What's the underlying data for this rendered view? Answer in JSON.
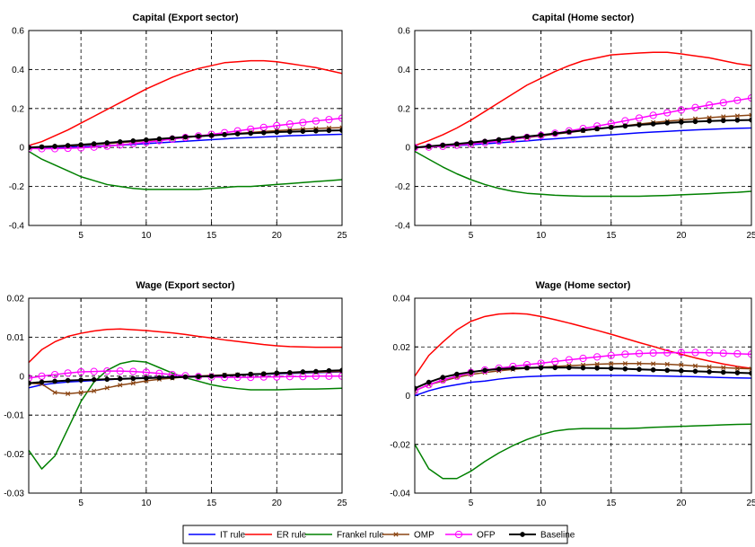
{
  "legend": {
    "position": "bottom",
    "entries": [
      {
        "label": "IT rule",
        "color": "#0000ff",
        "marker": "none"
      },
      {
        "label": "ER rule",
        "color": "#ff0000",
        "marker": "none"
      },
      {
        "label": "Frankel rule",
        "color": "#008000",
        "marker": "none"
      },
      {
        "label": "OMP",
        "color": "#8b4513",
        "marker": "x"
      },
      {
        "label": "OFP",
        "color": "#ff00ff",
        "marker": "circle"
      },
      {
        "label": "Baseline",
        "color": "#000000",
        "marker": "dot"
      }
    ]
  },
  "chart_data": [
    {
      "type": "line",
      "title": "Capital (Export sector)",
      "xlabel": "",
      "ylabel": "",
      "xlim": [
        1,
        25
      ],
      "ylim": [
        -0.4,
        0.6
      ],
      "grid": true,
      "xticks": [
        5,
        10,
        15,
        20,
        25
      ],
      "yticks": [
        -0.4,
        -0.2,
        0,
        0.2,
        0.4,
        0.6
      ],
      "ytick_labels": [
        "-0.4",
        "-0.2",
        "0",
        "0.2",
        "0.4",
        "0.6"
      ],
      "x": [
        1,
        2,
        3,
        4,
        5,
        6,
        7,
        8,
        9,
        10,
        11,
        12,
        13,
        14,
        15,
        16,
        17,
        18,
        19,
        20,
        21,
        22,
        23,
        24,
        25
      ],
      "series": [
        {
          "name": "IT rule",
          "values": [
            0,
            0,
            0,
            0.002,
            0.004,
            0.006,
            0.009,
            0.012,
            0.016,
            0.02,
            0.024,
            0.028,
            0.032,
            0.036,
            0.04,
            0.044,
            0.048,
            0.051,
            0.054,
            0.057,
            0.06,
            0.062,
            0.064,
            0.066,
            0.068
          ]
        },
        {
          "name": "ER rule",
          "values": [
            0.01,
            0.03,
            0.06,
            0.09,
            0.125,
            0.16,
            0.195,
            0.23,
            0.265,
            0.3,
            0.33,
            0.36,
            0.385,
            0.405,
            0.42,
            0.435,
            0.44,
            0.445,
            0.445,
            0.44,
            0.43,
            0.42,
            0.41,
            0.395,
            0.38
          ]
        },
        {
          "name": "Frankel rule",
          "values": [
            -0.02,
            -0.06,
            -0.09,
            -0.12,
            -0.15,
            -0.17,
            -0.19,
            -0.2,
            -0.21,
            -0.215,
            -0.215,
            -0.215,
            -0.215,
            -0.215,
            -0.21,
            -0.205,
            -0.2,
            -0.2,
            -0.195,
            -0.19,
            -0.185,
            -0.18,
            -0.175,
            -0.17,
            -0.165
          ]
        },
        {
          "name": "OMP",
          "values": [
            0,
            0.002,
            0.004,
            0.007,
            0.011,
            0.015,
            0.02,
            0.025,
            0.03,
            0.035,
            0.04,
            0.046,
            0.052,
            0.057,
            0.062,
            0.067,
            0.072,
            0.077,
            0.082,
            0.086,
            0.09,
            0.094,
            0.097,
            0.1,
            0.102
          ]
        },
        {
          "name": "OFP",
          "values": [
            -0.005,
            -0.006,
            -0.006,
            -0.004,
            -0.002,
            0.002,
            0.007,
            0.013,
            0.02,
            0.027,
            0.035,
            0.043,
            0.051,
            0.059,
            0.067,
            0.076,
            0.085,
            0.094,
            0.103,
            0.112,
            0.12,
            0.128,
            0.136,
            0.143,
            0.15
          ]
        },
        {
          "name": "Baseline",
          "values": [
            0,
            0.003,
            0.006,
            0.01,
            0.014,
            0.019,
            0.024,
            0.029,
            0.034,
            0.039,
            0.044,
            0.049,
            0.054,
            0.058,
            0.062,
            0.066,
            0.07,
            0.073,
            0.076,
            0.079,
            0.081,
            0.083,
            0.085,
            0.087,
            0.088
          ]
        }
      ]
    },
    {
      "type": "line",
      "title": "Capital (Home sector)",
      "xlabel": "",
      "ylabel": "",
      "xlim": [
        1,
        25
      ],
      "ylim": [
        -0.4,
        0.6
      ],
      "grid": true,
      "xticks": [
        5,
        10,
        15,
        20,
        25
      ],
      "yticks": [
        -0.4,
        -0.2,
        0,
        0.2,
        0.4,
        0.6
      ],
      "ytick_labels": [
        "-0.4",
        "-0.2",
        "0",
        "0.2",
        "0.4",
        "0.6"
      ],
      "x": [
        1,
        2,
        3,
        4,
        5,
        6,
        7,
        8,
        9,
        10,
        11,
        12,
        13,
        14,
        15,
        16,
        17,
        18,
        19,
        20,
        21,
        22,
        23,
        24,
        25
      ],
      "series": [
        {
          "name": "IT rule",
          "values": [
            0,
            0.003,
            0.006,
            0.01,
            0.014,
            0.019,
            0.024,
            0.029,
            0.034,
            0.04,
            0.045,
            0.05,
            0.055,
            0.06,
            0.065,
            0.07,
            0.075,
            0.079,
            0.083,
            0.087,
            0.09,
            0.093,
            0.096,
            0.098,
            0.1
          ]
        },
        {
          "name": "ER rule",
          "values": [
            0.01,
            0.035,
            0.065,
            0.1,
            0.14,
            0.185,
            0.23,
            0.275,
            0.32,
            0.355,
            0.39,
            0.42,
            0.445,
            0.46,
            0.475,
            0.48,
            0.485,
            0.488,
            0.488,
            0.48,
            0.47,
            0.46,
            0.445,
            0.43,
            0.42
          ]
        },
        {
          "name": "Frankel rule",
          "values": [
            -0.02,
            -0.06,
            -0.1,
            -0.135,
            -0.165,
            -0.19,
            -0.21,
            -0.225,
            -0.235,
            -0.24,
            -0.245,
            -0.248,
            -0.25,
            -0.25,
            -0.25,
            -0.25,
            -0.25,
            -0.248,
            -0.246,
            -0.243,
            -0.24,
            -0.237,
            -0.233,
            -0.23,
            -0.225
          ]
        },
        {
          "name": "OMP",
          "values": [
            0,
            0.004,
            0.009,
            0.015,
            0.021,
            0.028,
            0.035,
            0.043,
            0.051,
            0.059,
            0.068,
            0.077,
            0.086,
            0.095,
            0.104,
            0.112,
            0.12,
            0.128,
            0.135,
            0.141,
            0.147,
            0.153,
            0.158,
            0.162,
            0.166
          ]
        },
        {
          "name": "OFP",
          "values": [
            0,
            0.002,
            0.006,
            0.012,
            0.018,
            0.025,
            0.033,
            0.042,
            0.052,
            0.062,
            0.073,
            0.085,
            0.097,
            0.11,
            0.123,
            0.137,
            0.151,
            0.165,
            0.178,
            0.192,
            0.205,
            0.218,
            0.23,
            0.242,
            0.254
          ]
        },
        {
          "name": "Baseline",
          "values": [
            0,
            0.006,
            0.012,
            0.018,
            0.025,
            0.032,
            0.04,
            0.048,
            0.056,
            0.064,
            0.072,
            0.08,
            0.088,
            0.096,
            0.103,
            0.11,
            0.116,
            0.121,
            0.126,
            0.13,
            0.133,
            0.136,
            0.138,
            0.14,
            0.141
          ]
        }
      ]
    },
    {
      "type": "line",
      "title": "Wage (Export sector)",
      "xlabel": "",
      "ylabel": "",
      "xlim": [
        1,
        25
      ],
      "ylim": [
        -0.03,
        0.02
      ],
      "grid": true,
      "xticks": [
        5,
        10,
        15,
        20,
        25
      ],
      "yticks": [
        -0.03,
        -0.02,
        -0.01,
        0,
        0.01,
        0.02
      ],
      "ytick_labels": [
        "-0.03",
        "-0.02",
        "-0.01",
        "0",
        "0.01",
        "0.02"
      ],
      "x": [
        1,
        2,
        3,
        4,
        5,
        6,
        7,
        8,
        9,
        10,
        11,
        12,
        13,
        14,
        15,
        16,
        17,
        18,
        19,
        20,
        21,
        22,
        23,
        24,
        25
      ],
      "series": [
        {
          "name": "IT rule",
          "values": [
            -0.003,
            -0.0022,
            -0.0018,
            -0.0015,
            -0.0013,
            -0.0011,
            -0.0009,
            -0.0007,
            -0.0005,
            -0.0004,
            -0.0003,
            -0.0002,
            -0.0001,
            0,
            0.0001,
            0.0002,
            0.0003,
            0.0004,
            0.0005,
            0.0006,
            0.0007,
            0.0008,
            0.0009,
            0.001,
            0.0011
          ]
        },
        {
          "name": "ER rule",
          "values": [
            0.0035,
            0.0068,
            0.0088,
            0.0102,
            0.011,
            0.0116,
            0.012,
            0.0121,
            0.0119,
            0.0117,
            0.0114,
            0.0111,
            0.0107,
            0.0102,
            0.0098,
            0.0093,
            0.0089,
            0.0085,
            0.0081,
            0.0078,
            0.0076,
            0.0075,
            0.0074,
            0.0074,
            0.0074
          ]
        },
        {
          "name": "Frankel rule",
          "values": [
            -0.019,
            -0.0238,
            -0.0205,
            -0.0135,
            -0.0065,
            -0.0015,
            0.0015,
            0.0032,
            0.0039,
            0.0036,
            0.0022,
            0.0008,
            -0.0004,
            -0.0013,
            -0.0022,
            -0.0028,
            -0.0032,
            -0.0035,
            -0.0035,
            -0.0035,
            -0.0034,
            -0.0033,
            -0.0033,
            -0.0032,
            -0.0031
          ]
        },
        {
          "name": "OMP",
          "values": [
            -0.0018,
            -0.002,
            -0.0042,
            -0.0045,
            -0.0042,
            -0.0038,
            -0.003,
            -0.0023,
            -0.0018,
            -0.0012,
            -0.0008,
            -0.0005,
            -0.0002,
            0,
            0.0002,
            0.0003,
            0.0004,
            0.0005,
            0.0006,
            0.0007,
            0.0008,
            0.0009,
            0.001,
            0.0011,
            0.0012
          ]
        },
        {
          "name": "OFP",
          "values": [
            -0.0005,
            0,
            0.0004,
            0.0008,
            0.0011,
            0.0012,
            0.0013,
            0.0013,
            0.0012,
            0.001,
            0.0007,
            0.0004,
            0.0001,
            -0.0001,
            -0.0002,
            -0.0003,
            -0.0003,
            -0.0003,
            -0.0002,
            -0.0002,
            -0.0001,
            -0.0001,
            0,
            0,
            0
          ]
        },
        {
          "name": "Baseline",
          "values": [
            -0.0018,
            -0.0015,
            -0.0013,
            -0.0011,
            -0.001,
            -0.0009,
            -0.0008,
            -0.0007,
            -0.0006,
            -0.0005,
            -0.0004,
            -0.0003,
            -0.0002,
            -0.0001,
            0,
            0.0002,
            0.0003,
            0.0005,
            0.0006,
            0.0008,
            0.0009,
            0.0011,
            0.0012,
            0.0014,
            0.0015
          ]
        }
      ]
    },
    {
      "type": "line",
      "title": "Wage (Home sector)",
      "xlabel": "",
      "ylabel": "",
      "xlim": [
        1,
        25
      ],
      "ylim": [
        -0.04,
        0.04
      ],
      "grid": true,
      "xticks": [
        5,
        10,
        15,
        20,
        25
      ],
      "yticks": [
        -0.04,
        -0.02,
        0,
        0.02,
        0.04
      ],
      "ytick_labels": [
        "-0.04",
        "-0.02",
        "0",
        "0.02",
        "0.04"
      ],
      "x": [
        1,
        2,
        3,
        4,
        5,
        6,
        7,
        8,
        9,
        10,
        11,
        12,
        13,
        14,
        15,
        16,
        17,
        18,
        19,
        20,
        21,
        22,
        23,
        24,
        25
      ],
      "series": [
        {
          "name": "IT rule",
          "values": [
            0,
            0.002,
            0.0035,
            0.0045,
            0.0055,
            0.006,
            0.0068,
            0.0074,
            0.0078,
            0.008,
            0.0082,
            0.0083,
            0.0083,
            0.0083,
            0.0083,
            0.0083,
            0.0082,
            0.0081,
            0.008,
            0.0079,
            0.0078,
            0.0076,
            0.0074,
            0.0073,
            0.0072
          ]
        },
        {
          "name": "ER rule",
          "values": [
            0.008,
            0.0165,
            0.022,
            0.027,
            0.0305,
            0.0325,
            0.0335,
            0.0338,
            0.0335,
            0.0325,
            0.0312,
            0.0298,
            0.0283,
            0.0268,
            0.0252,
            0.0235,
            0.0218,
            0.0202,
            0.0185,
            0.017,
            0.0155,
            0.0142,
            0.013,
            0.012,
            0.0112
          ]
        },
        {
          "name": "Frankel rule",
          "values": [
            -0.02,
            -0.03,
            -0.034,
            -0.034,
            -0.031,
            -0.027,
            -0.0235,
            -0.0205,
            -0.018,
            -0.016,
            -0.0145,
            -0.0138,
            -0.0135,
            -0.0135,
            -0.0135,
            -0.0135,
            -0.0133,
            -0.013,
            -0.0128,
            -0.0126,
            -0.0124,
            -0.0122,
            -0.012,
            -0.0118,
            -0.0117
          ]
        },
        {
          "name": "OMP",
          "values": [
            0.002,
            0.0045,
            0.006,
            0.0075,
            0.0087,
            0.0095,
            0.0102,
            0.0108,
            0.0113,
            0.0117,
            0.012,
            0.0123,
            0.0126,
            0.0129,
            0.0131,
            0.0132,
            0.0132,
            0.0131,
            0.0129,
            0.0126,
            0.0122,
            0.0118,
            0.0115,
            0.0112,
            0.011
          ]
        },
        {
          "name": "OFP",
          "values": [
            0.002,
            0.0045,
            0.0065,
            0.008,
            0.0095,
            0.0105,
            0.0113,
            0.012,
            0.0127,
            0.0133,
            0.014,
            0.0147,
            0.0153,
            0.0159,
            0.0165,
            0.017,
            0.0173,
            0.0175,
            0.0176,
            0.0177,
            0.0177,
            0.0176,
            0.0174,
            0.0172,
            0.017
          ]
        },
        {
          "name": "Baseline",
          "values": [
            0.003,
            0.0055,
            0.0075,
            0.0088,
            0.0097,
            0.0104,
            0.0109,
            0.0112,
            0.0114,
            0.0115,
            0.0115,
            0.0115,
            0.0114,
            0.0113,
            0.0112,
            0.011,
            0.0108,
            0.0106,
            0.0104,
            0.0102,
            0.01,
            0.0098,
            0.0096,
            0.0094,
            0.0092
          ]
        }
      ]
    }
  ]
}
